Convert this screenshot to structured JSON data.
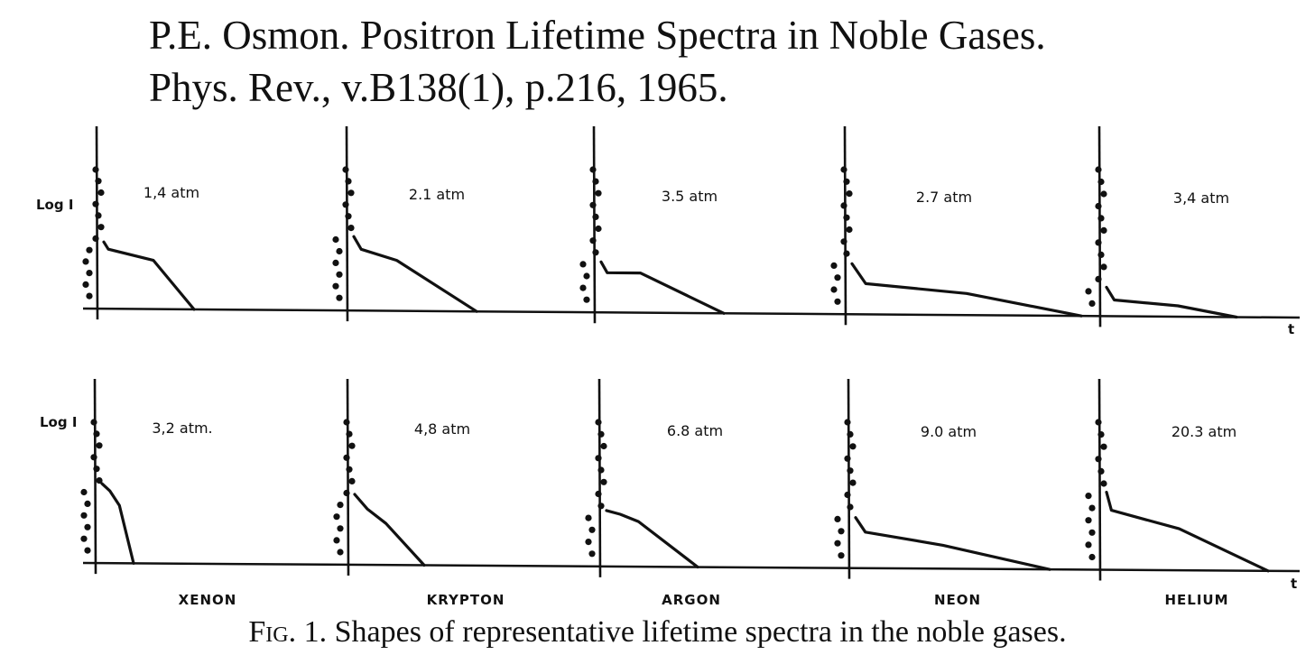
{
  "header": {
    "line1": "P.E. Osmon. Positron Lifetime Spectra in Noble Gases.",
    "line2": "Phys. Rev., v.B138(1), p.216, 1965."
  },
  "caption": {
    "prefix": "Fig",
    "text": ". 1. Shapes of representative lifetime spectra in the noble gases."
  },
  "axes": {
    "ylabel": "Log I",
    "xlabel": "t"
  },
  "gases": [
    "XENON",
    "KRYPTON",
    "ARGON",
    "NEON",
    "HELIUM"
  ],
  "rows": [
    {
      "pressures": [
        "1,4 atm",
        "2.1 atm",
        "3.5 atm",
        "2.7 atm",
        "3,4 atm"
      ]
    },
    {
      "pressures": [
        "3,2 atm.",
        "4,8 atm",
        "6.8 atm",
        "9.0 atm",
        "20.3 atm"
      ]
    }
  ],
  "colors": {
    "ink": "#111111",
    "paper": "#ffffff"
  },
  "chart_data": [
    {
      "type": "scatter",
      "panel": "XENON 1,4 atm",
      "tail_x": [
        0,
        0.05,
        0.55,
        1.0
      ],
      "tail_y": [
        0.37,
        0.33,
        0.27,
        0.0
      ],
      "x_end": 1.0
    },
    {
      "type": "scatter",
      "panel": "KRYPTON 2.1 atm",
      "tail_x": [
        0,
        0.06,
        0.35,
        1.0
      ],
      "tail_y": [
        0.41,
        0.34,
        0.28,
        0.0
      ],
      "x_end": 1.0
    },
    {
      "type": "scatter",
      "panel": "ARGON 3.5 atm",
      "tail_x": [
        0,
        0.05,
        0.32,
        1.0
      ],
      "tail_y": [
        0.28,
        0.22,
        0.22,
        0.0
      ],
      "x_end": 1.0
    },
    {
      "type": "scatter",
      "panel": "NEON 2.7 atm",
      "tail_x": [
        0,
        0.06,
        0.5,
        1.0
      ],
      "tail_y": [
        0.28,
        0.17,
        0.12,
        0.0
      ],
      "x_end": 1.0
    },
    {
      "type": "scatter",
      "panel": "HELIUM 3,4 atm",
      "tail_x": [
        0,
        0.06,
        0.55,
        1.0
      ],
      "tail_y": [
        0.16,
        0.09,
        0.06,
        0.0
      ],
      "x_end": 1.0
    },
    {
      "type": "scatter",
      "panel": "XENON 3,2 atm.",
      "tail_x": [
        0,
        0.25,
        0.55,
        1.0
      ],
      "tail_y": [
        0.44,
        0.4,
        0.32,
        0.0
      ],
      "x_end": 1.0
    },
    {
      "type": "scatter",
      "panel": "KRYPTON 4,8 atm",
      "tail_x": [
        0,
        0.18,
        0.45,
        1.0
      ],
      "tail_y": [
        0.39,
        0.31,
        0.23,
        0.0
      ],
      "x_end": 1.0
    },
    {
      "type": "scatter",
      "panel": "ARGON 6.8 atm",
      "tail_x": [
        0,
        0.15,
        0.35,
        1.0
      ],
      "tail_y": [
        0.31,
        0.29,
        0.25,
        0.0
      ],
      "x_end": 1.0
    },
    {
      "type": "scatter",
      "panel": "NEON 9.0 atm",
      "tail_x": [
        0,
        0.05,
        0.45,
        1.0
      ],
      "tail_y": [
        0.28,
        0.2,
        0.13,
        0.0
      ],
      "x_end": 1.0
    },
    {
      "type": "scatter",
      "panel": "HELIUM 20.3 atm",
      "tail_x": [
        0,
        0.03,
        0.45,
        1.0
      ],
      "tail_y": [
        0.43,
        0.33,
        0.23,
        0.0
      ],
      "x_end": 1.0
    }
  ]
}
